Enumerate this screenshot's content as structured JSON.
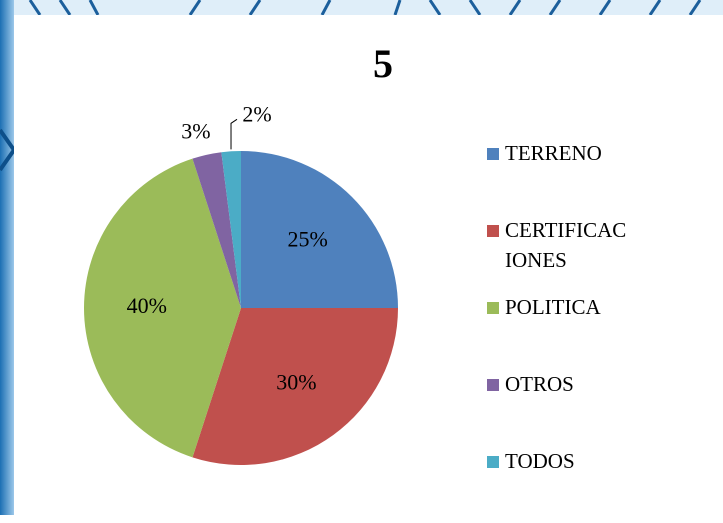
{
  "chart_data": {
    "type": "pie",
    "title": "5",
    "categories": [
      "TERRENO",
      "CERTIFICACIONES",
      "POLITICA",
      "OTROS",
      "TODOS"
    ],
    "values": [
      25,
      30,
      40,
      3,
      2
    ],
    "value_labels": [
      "25%",
      "30%",
      "40%",
      "3%",
      "2%"
    ],
    "colors": [
      "#4f81bd",
      "#c0504d",
      "#9bbb59",
      "#8064a2",
      "#4bacc6"
    ],
    "legend": "right"
  }
}
